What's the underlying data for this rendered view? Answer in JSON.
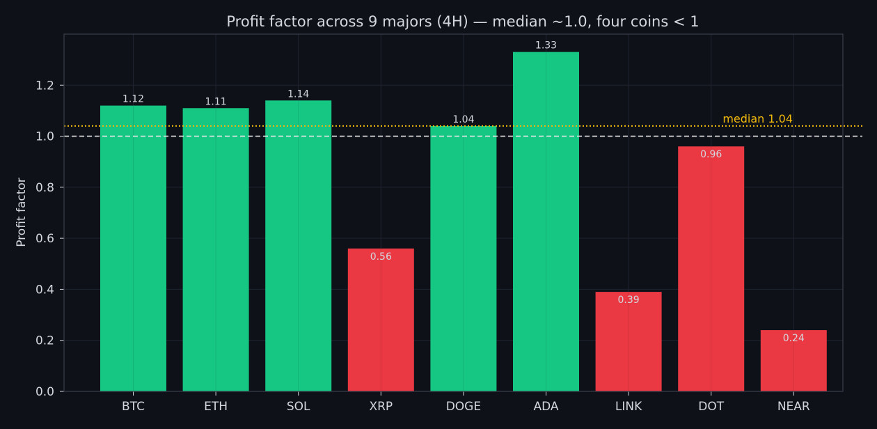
{
  "chart_data": {
    "type": "bar",
    "title": "Profit factor across 9 majors (4H) — median ~1.0, four coins < 1",
    "xlabel": "",
    "ylabel": "Profit factor",
    "categories": [
      "BTC",
      "ETH",
      "SOL",
      "XRP",
      "DOGE",
      "ADA",
      "LINK",
      "DOT",
      "NEAR"
    ],
    "values": [
      1.12,
      1.11,
      1.14,
      0.56,
      1.04,
      1.33,
      0.39,
      0.96,
      0.24
    ],
    "value_labels": [
      "1.12",
      "1.11",
      "1.14",
      "0.56",
      "1.04",
      "1.33",
      "0.39",
      "0.96",
      "0.24"
    ],
    "ylim": [
      0,
      1.4
    ],
    "yticks": [
      0.0,
      0.2,
      0.4,
      0.6,
      0.8,
      1.0,
      1.2
    ],
    "ytick_labels": [
      "0.0",
      "0.2",
      "0.4",
      "0.6",
      "0.8",
      "1.0",
      "1.2"
    ],
    "grid": true,
    "reference_lines": [
      {
        "value": 1.0,
        "style": "dashed",
        "color": "#e6e6e6",
        "label": ""
      },
      {
        "value": 1.04,
        "style": "dotted",
        "color": "#f2b90d",
        "label": "median 1.04"
      }
    ],
    "colors": {
      "above_one": "#16c784",
      "below_one": "#ea3943",
      "background": "#0e1118",
      "text": "#d4d7de",
      "grid": "#1f2430",
      "axis": "#3a3f4b"
    }
  }
}
